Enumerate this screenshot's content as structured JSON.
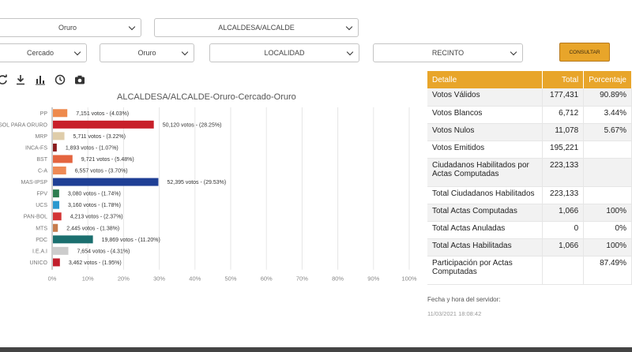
{
  "filters": {
    "departamento": "Oruro",
    "cargo": "ALCALDESA/ALCALDE",
    "provincia": "Cercado",
    "municipio": "Oruro",
    "localidad": "LOCALIDAD",
    "recinto": "RECINTO",
    "consultar_label": "CONSULTAR"
  },
  "toolbar": {
    "icons": [
      "refresh-icon",
      "download-icon",
      "bar-chart-icon",
      "clock-icon",
      "camera-icon"
    ]
  },
  "chart_data": {
    "type": "bar",
    "orientation": "horizontal",
    "title": "ALCALDESA/ALCALDE-Oruro-Cercado-Oruro",
    "categories": [
      "PP",
      "SOL PARA ORURO",
      "MRP",
      "INCA-FS",
      "BST",
      "C-A",
      "MAS-IPSP",
      "FPV",
      "UCS",
      "PAN-BOL",
      "MTS",
      "PDC",
      "I.E.A.I",
      "UNICO"
    ],
    "values": [
      4.03,
      28.25,
      3.22,
      1.07,
      5.48,
      3.7,
      29.53,
      1.74,
      1.78,
      2.37,
      1.38,
      11.2,
      4.31,
      1.95
    ],
    "labels": [
      "7,151 votos - (4.03%)",
      "50,120 votos - (28.25%)",
      "5,711 votos - (3.22%)",
      "1,893 votos - (1.07%)",
      "9,721 votos - (5.48%)",
      "6,557 votos - (3.70%)",
      "52,395 votos - (29.53%)",
      "3,080 votos - (1.74%)",
      "3,160 votos - (1.78%)",
      "4,213 votos - (2.37%)",
      "2,445 votos - (1.38%)",
      "19,869 votos - (11.20%)",
      "7,654 votos - (4.31%)",
      "3,462 votos - (1.95%)"
    ],
    "colors": [
      "#ee8a4d",
      "#c8202a",
      "#dfcdaa",
      "#8a1a1c",
      "#e4643f",
      "#ef8a55",
      "#1f3f95",
      "#2e7d50",
      "#2b99cf",
      "#d33535",
      "#c77b4c",
      "#1b6f6f",
      "#cccccc",
      "#c11e2c"
    ],
    "xlim": [
      0,
      100
    ],
    "x_ticks": [
      "0%",
      "10%",
      "20%",
      "30%",
      "40%",
      "50%",
      "60%",
      "70%",
      "80%",
      "90%",
      "100%"
    ],
    "grid": true
  },
  "table": {
    "headers": [
      "Detalle",
      "Total",
      "Porcentaje"
    ],
    "rows": [
      [
        "Votos Válidos",
        "177,431",
        "90.89%"
      ],
      [
        "Votos Blancos",
        "6,712",
        "3.44%"
      ],
      [
        "Votos Nulos",
        "11,078",
        "5.67%"
      ],
      [
        "Votos Emitidos",
        "195,221",
        ""
      ],
      [
        "Ciudadanos Habilitados por Actas Computadas",
        "223,133",
        ""
      ],
      [
        "Total Ciudadanos Habilitados",
        "223,133",
        ""
      ],
      [
        "Total Actas Computadas",
        "1,066",
        "100%"
      ],
      [
        "Total Actas Anuladas",
        "0",
        "0%"
      ],
      [
        "Total Actas Habilitadas",
        "1,066",
        "100%"
      ],
      [
        "Participación por Actas Computadas",
        "",
        "87.49%"
      ]
    ]
  },
  "server": {
    "label": "Fecha y hora del servidor:",
    "datetime": "11/03/2021 18:08:42"
  }
}
